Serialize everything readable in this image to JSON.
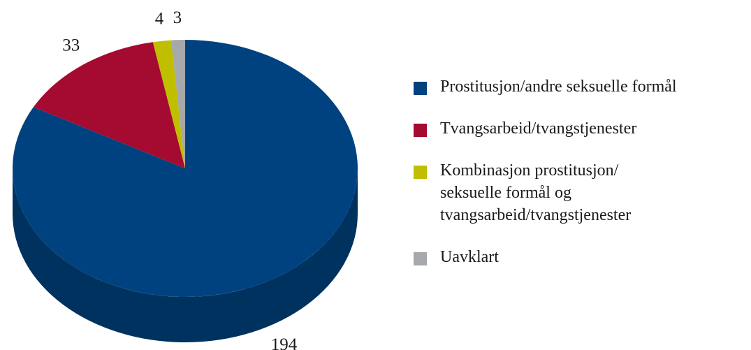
{
  "chart_data": {
    "type": "pie",
    "categories": [
      "Prostitusjon/andre seksuelle formål",
      "Tvangsarbeid/tvangstjenester",
      "Kombinasjon prostitusjon/\nseksuelle formål og\ntvangsarbeid/tvangstjenester",
      "Uavklart"
    ],
    "values": [
      194,
      33,
      4,
      3
    ],
    "colors": [
      "#00427f",
      "#a50a30",
      "#bfbf00",
      "#a6a8ab"
    ],
    "legend": "right"
  }
}
